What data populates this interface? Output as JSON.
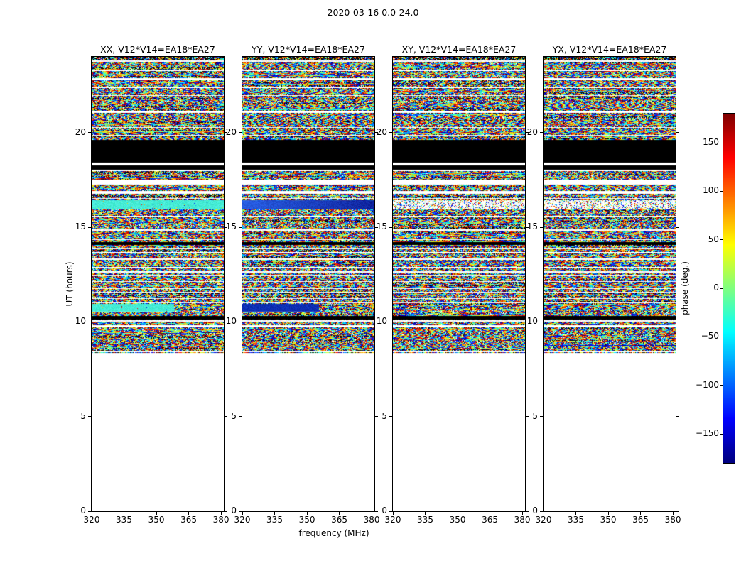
{
  "chart_data": {
    "type": "heatmap",
    "title": "2020-03-16 0.0-24.0",
    "xlabel": "frequency (MHz)",
    "ylabel": "UT (hours)",
    "panels": [
      {
        "pol": "XX",
        "title": "XX, V12*V14=EA18*EA27"
      },
      {
        "pol": "YY",
        "title": "YY, V12*V14=EA18*EA27"
      },
      {
        "pol": "XY",
        "title": "XY, V12*V14=EA18*EA27"
      },
      {
        "pol": "YX",
        "title": "YX, V12*V14=EA18*EA27"
      }
    ],
    "xlim": [
      320,
      381.3
    ],
    "ylim": [
      0,
      24
    ],
    "xticks": [
      320,
      335,
      350,
      365,
      380
    ],
    "yticks": [
      0,
      5,
      10,
      15,
      20
    ],
    "colorbar": {
      "label": "phase (deg.)",
      "vmin": -180,
      "vmax": 180,
      "ticks": [
        150,
        100,
        50,
        0,
        -50,
        -100,
        -150
      ],
      "colormap": "jet"
    },
    "data_coverage": {
      "start_hour": 8.35,
      "end_hour": 24.0
    },
    "flagged_black_bands_hours": [
      [
        18.42,
        19.6
      ],
      [
        18.02,
        18.25
      ],
      [
        14.05,
        14.22
      ],
      [
        10.12,
        10.3
      ]
    ],
    "white_gaps_hours": [
      [
        18.25,
        18.42
      ]
    ],
    "special_bands": [
      {
        "hours": [
          15.92,
          16.42
        ],
        "per_panel": [
          "cyan",
          "blue",
          "sparse",
          "sparse"
        ]
      },
      {
        "hours": [
          10.52,
          10.95
        ],
        "per_panel": [
          "cyan_partial",
          "darkblue_partial",
          "speckle",
          "speckle"
        ]
      }
    ],
    "noise_seed": 20200316
  }
}
